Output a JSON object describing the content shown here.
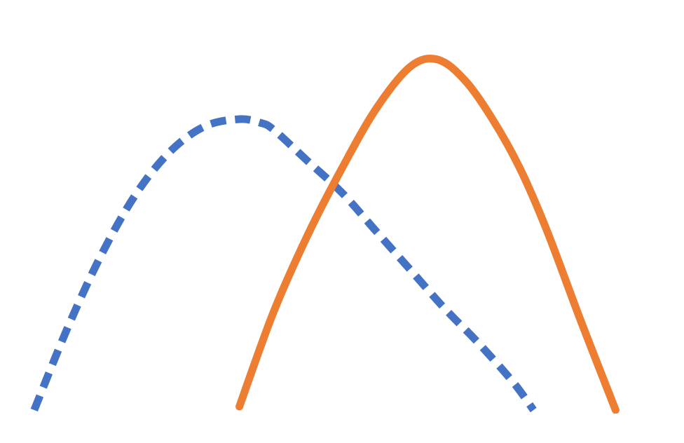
{
  "chart_data": {
    "type": "line",
    "title": "",
    "xlabel": "",
    "ylabel": "",
    "grid": false,
    "legend": "none",
    "xlim": [
      0,
      100
    ],
    "ylim": [
      0,
      100
    ],
    "series": [
      {
        "style": "dashed",
        "color": "#4472C4",
        "x": [
          5,
          10,
          15,
          20,
          25,
          30,
          35,
          38,
          40,
          45,
          50,
          55,
          60,
          65,
          70,
          75,
          78
        ],
        "y": [
          1,
          25,
          46,
          63,
          75,
          82,
          84,
          83,
          81,
          72,
          63,
          52,
          41,
          30,
          20,
          9,
          1
        ]
      },
      {
        "style": "solid",
        "color": "#ED7D31",
        "x": [
          35,
          40,
          45,
          50,
          55,
          60,
          64,
          68,
          72,
          76,
          80,
          85,
          90
        ],
        "y": [
          2,
          29,
          51,
          70,
          87,
          99,
          101,
          95,
          84,
          70,
          52,
          26,
          1
        ]
      }
    ]
  }
}
